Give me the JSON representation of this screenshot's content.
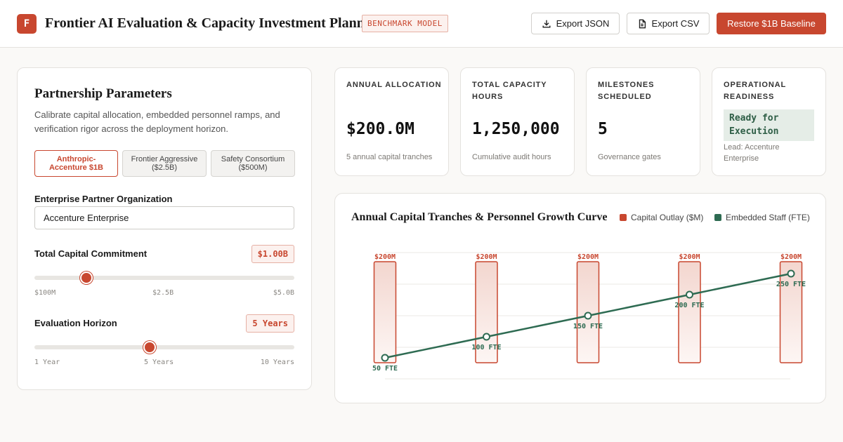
{
  "header": {
    "logo_letter": "F",
    "title": "Frontier AI Evaluation & Capacity Investment Planner",
    "badge": "BENCHMARK MODEL",
    "export_json_label": "Export JSON",
    "export_csv_label": "Export CSV",
    "restore_label": "Restore $1B Baseline",
    "icons": [
      "download-icon",
      "file-text-icon"
    ]
  },
  "params": {
    "title": "Partnership Parameters",
    "description": "Calibrate capital allocation, embedded personnel ramps, and verification rigor across the deployment horizon.",
    "presets": [
      {
        "label": "Anthropic-Accenture $1B",
        "active": true
      },
      {
        "label": "Frontier Aggressive ($2.5B)",
        "active": false
      },
      {
        "label": "Safety Consortium ($500M)",
        "active": false
      }
    ],
    "partner_label": "Enterprise Partner Organization",
    "partner_value": "Accenture Enterprise",
    "capital_label": "Total Capital Commitment",
    "capital_value": "$1.00B",
    "capital_fraction": 0.2,
    "capital_min": "$100M",
    "capital_mid": "$2.5B",
    "capital_max": "$5.0B",
    "horizon_label": "Evaluation Horizon",
    "horizon_value": "5 Years",
    "horizon_fraction": 0.444,
    "horizon_min": "1 Year",
    "horizon_mid": "5 Years",
    "horizon_max": "10 Years"
  },
  "kpis": [
    {
      "label": "ANNUAL ALLOCATION",
      "value": "$200.0M",
      "sub": "5 annual capital tranches"
    },
    {
      "label": "TOTAL CAPACITY HOURS",
      "value": "1,250,000",
      "sub": "Cumulative audit hours"
    },
    {
      "label": "MILESTONES SCHEDULED",
      "value": "5",
      "sub": "Governance gates"
    },
    {
      "label": "OPERATIONAL READINESS",
      "status": "Ready for Execution",
      "lead": "Lead: Accenture Enterprise"
    }
  ],
  "colors": {
    "accent": "#c8472f",
    "staff": "#2e6b52"
  },
  "chart_data": {
    "type": "bar",
    "title": "Annual Capital Tranches & Personnel Growth Curve",
    "legend_placement": "top-right",
    "series": [
      {
        "name": "Capital Outlay ($M)",
        "type": "bar",
        "values": [
          200,
          200,
          200,
          200,
          200
        ],
        "labels": [
          "$200M",
          "$200M",
          "$200M",
          "$200M",
          "$200M"
        ]
      },
      {
        "name": "Embedded Staff (FTE)",
        "type": "line",
        "values": [
          50,
          100,
          150,
          200,
          250
        ],
        "labels": [
          "50 FTE",
          "100 FTE",
          "150 FTE",
          "200 FTE",
          "250 FTE"
        ]
      }
    ],
    "grid": true
  }
}
